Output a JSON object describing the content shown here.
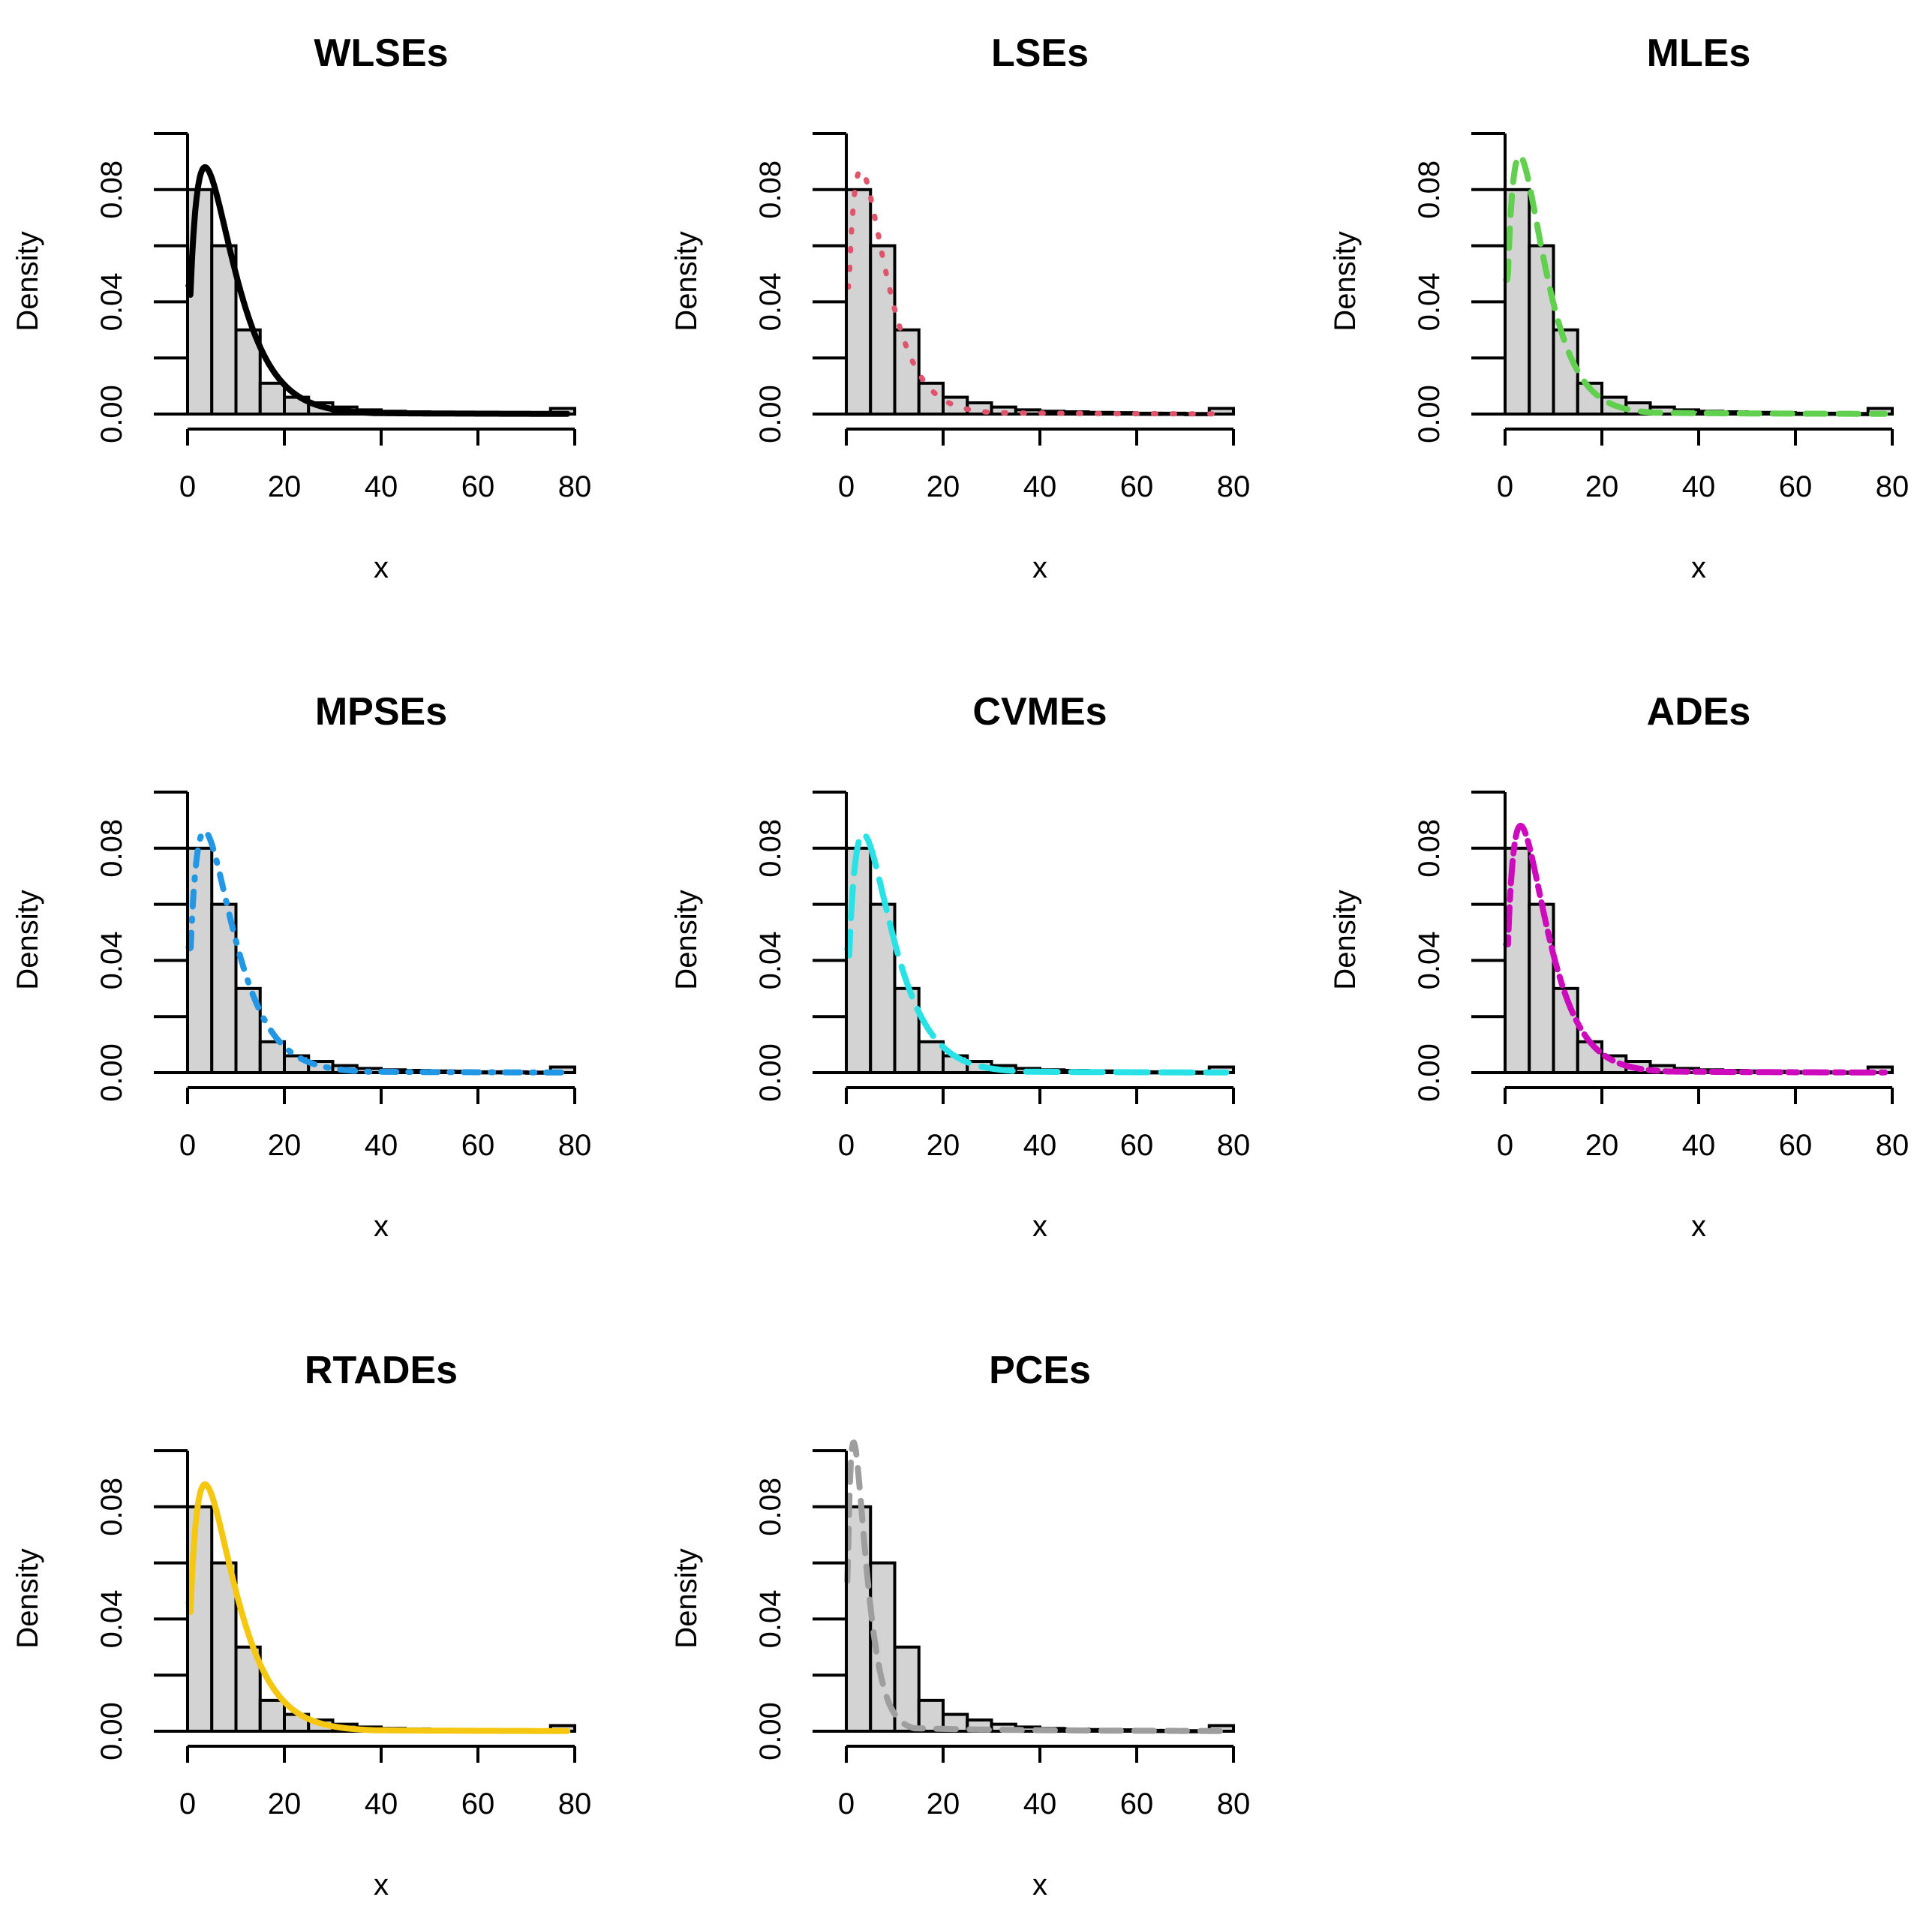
{
  "chart_data": {
    "type": "histogram-with-density-grid",
    "layout": "3x3 grid, 8 panels",
    "xlabel": "x",
    "ylabel": "Density",
    "xlim": [
      0,
      80
    ],
    "ylim": [
      0,
      0.1
    ],
    "x_ticks": [
      "0",
      "20",
      "40",
      "60",
      "80"
    ],
    "y_ticks": [
      "0.00",
      "0.04",
      "0.08"
    ],
    "y_tick_values": [
      0,
      0.02,
      0.04,
      0.06,
      0.08,
      0.1
    ],
    "histogram": {
      "bin_width": 5,
      "bin_starts": [
        0,
        5,
        10,
        15,
        20,
        25,
        30,
        35,
        40,
        45,
        50,
        55,
        60,
        65,
        70,
        75
      ],
      "densities": [
        0.08,
        0.06,
        0.03,
        0.011,
        0.006,
        0.004,
        0.0025,
        0.0015,
        0.001,
        0.0008,
        0.0006,
        0.0005,
        0.0003,
        0.0003,
        0.0002,
        0.002
      ]
    },
    "panels": [
      {
        "title": "WLSEs",
        "color": "#000000",
        "linestyle": "solid",
        "peak_x": 3.6,
        "peak_y": 0.088
      },
      {
        "title": "LSEs",
        "color": "#DF536B",
        "linestyle": "dotted",
        "peak_x": 3.0,
        "peak_y": 0.087
      },
      {
        "title": "MLEs",
        "color": "#61D04F",
        "linestyle": "dashed",
        "peak_x": 3.0,
        "peak_y": 0.092
      },
      {
        "title": "MPSEs",
        "color": "#2297E6",
        "linestyle": "dotdash",
        "peak_x": 3.5,
        "peak_y": 0.086
      },
      {
        "title": "CVMEs",
        "color": "#28E2E5",
        "linestyle": "longdash",
        "peak_x": 3.5,
        "peak_y": 0.085
      },
      {
        "title": "ADEs",
        "color": "#CD0BBC",
        "linestyle": "twodash",
        "peak_x": 3.2,
        "peak_y": 0.088
      },
      {
        "title": "RTADEs",
        "color": "#F5C710",
        "linestyle": "solid",
        "peak_x": 3.6,
        "peak_y": 0.088
      },
      {
        "title": "PCEs",
        "color": "#9E9E9E",
        "linestyle": "dashed",
        "peak_x": 1.5,
        "peak_y": 0.103
      }
    ]
  }
}
